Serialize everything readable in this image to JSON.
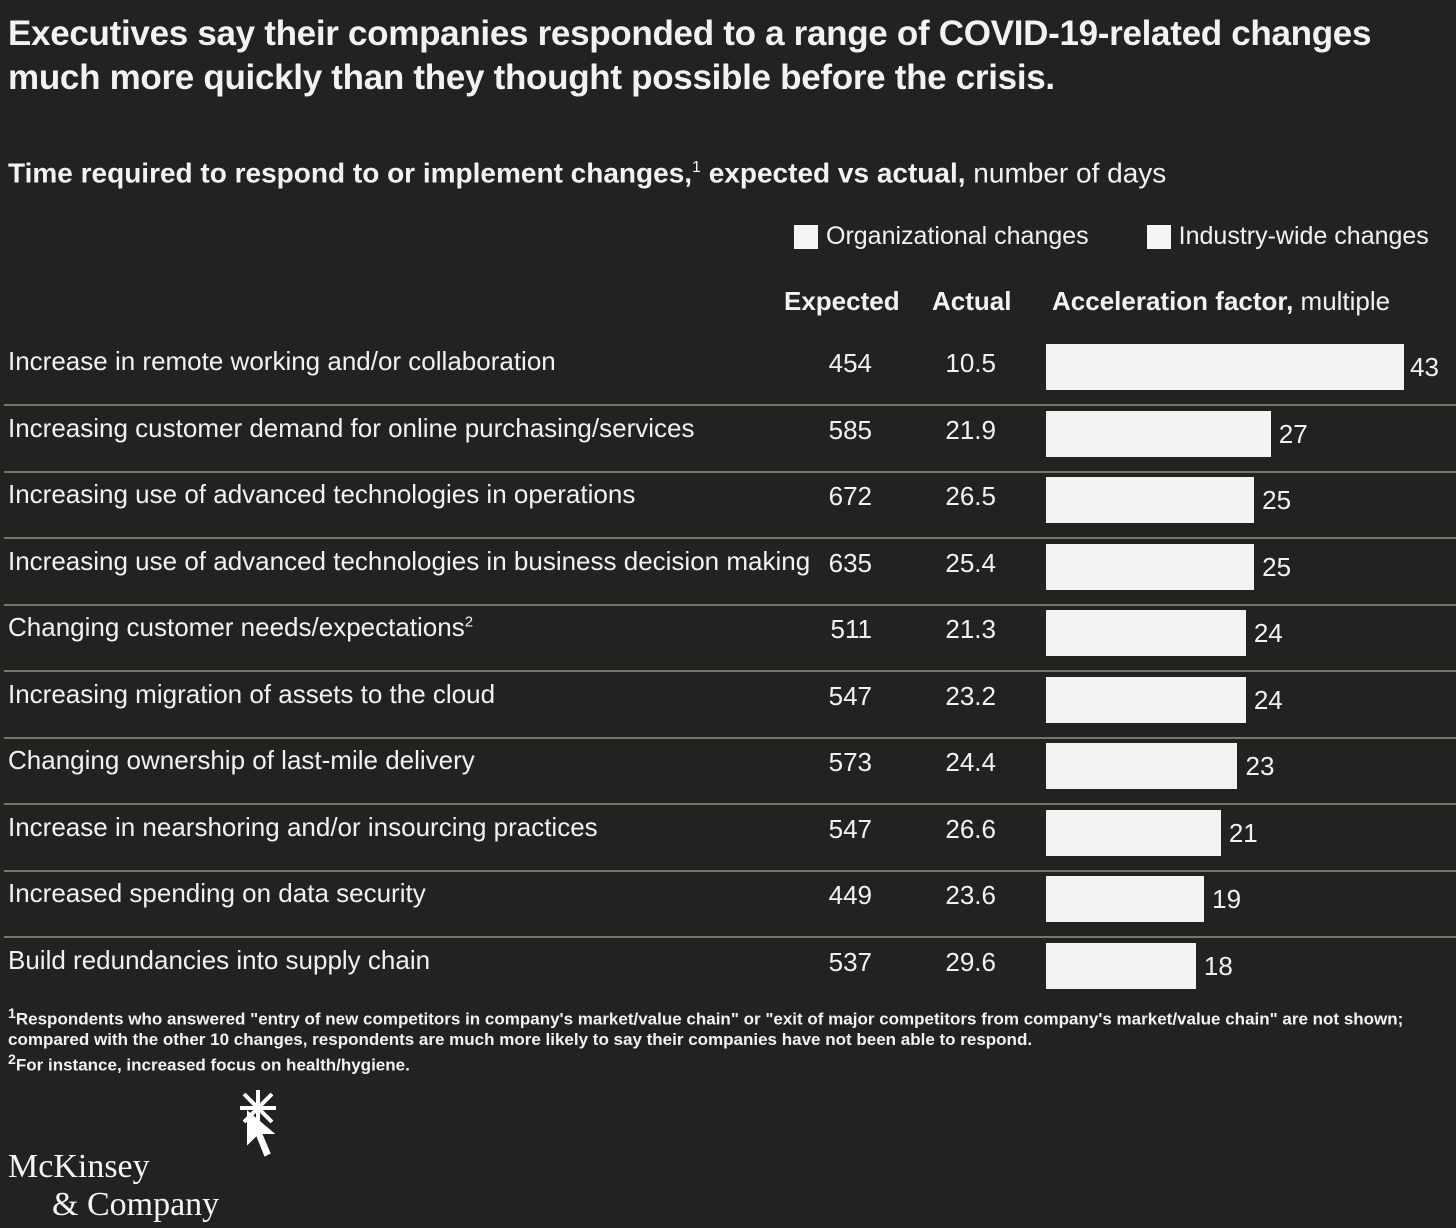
{
  "title": "Executives say their companies responded to a range of COVID-19-related changes much more quickly than they thought possible before the crisis.",
  "subtitle": {
    "bold": "Time required to respond to or implement changes,",
    "sup": "1",
    "bold2": " expected vs actual,",
    "light": " number of days"
  },
  "legend": {
    "org": "Organizational changes",
    "industry": "Industry-wide changes",
    "color": "#f5f5f3"
  },
  "columns": {
    "expected": "Expected",
    "actual": "Actual",
    "accel": "Acceleration factor,",
    "accel_unit": " multiple"
  },
  "chart_data": {
    "type": "bar",
    "title": "Time required to respond to or implement changes, expected vs actual, number of days",
    "categories": [
      "Increase in remote working and/or collaboration",
      "Increasing customer demand for online purchasing/services",
      "Increasing use of advanced technologies in operations",
      "Increasing use of advanced technologies in business decision making",
      "Changing customer needs/expectations",
      "Increasing migration of assets to the cloud",
      "Changing ownership of last-mile delivery",
      "Increase in nearshoring and/or insourcing practices",
      "Increased spending on data security",
      "Build redundancies into supply chain"
    ],
    "category_sups": [
      "",
      "",
      "",
      "",
      "2",
      "",
      "",
      "",
      "",
      ""
    ],
    "expected": [
      "454",
      "585",
      "672",
      "635",
      "511",
      "547",
      "573",
      "547",
      "449",
      "537"
    ],
    "actual": [
      "10.5",
      "21.9",
      "26.5",
      "25.4",
      "21.3",
      "23.2",
      "24.4",
      "26.6",
      "23.6",
      "29.6"
    ],
    "series": [
      {
        "name": "Acceleration factor, multiple",
        "values": [
          43,
          27,
          25,
          25,
          24,
          24,
          23,
          21,
          19,
          18
        ]
      }
    ],
    "xlim": [
      0,
      43
    ]
  },
  "footnotes": [
    {
      "sup": "1",
      "text": "Respondents who answered \"entry of new competitors in company's market/value chain\" or \"exit of major competitors from company's market/value chain\" are not shown; compared with the other 10 changes, respondents are much more likely to say their companies have not been able to respond."
    },
    {
      "sup": "2",
      "text": "For instance, increased focus on health/hygiene."
    }
  ],
  "logo": {
    "line1": "McKinsey",
    "line2": "& Company"
  }
}
